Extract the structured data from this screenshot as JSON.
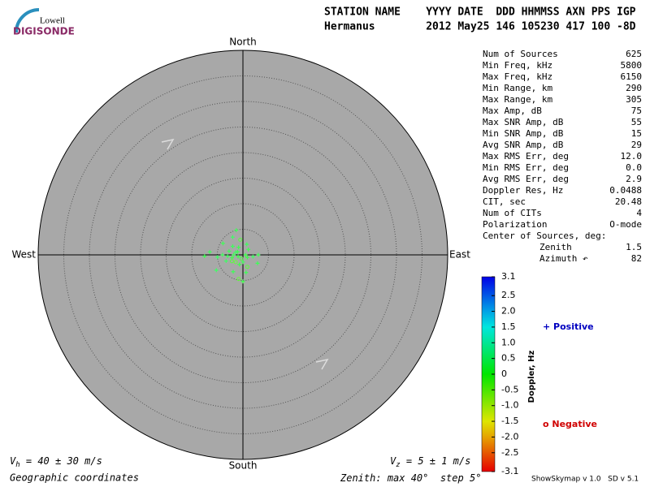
{
  "header": {
    "logo_top": "Lowell",
    "logo_bottom": "DIGISONDE",
    "line1": "STATION NAME    YYYY DATE  DDD HHMMSS AXN PPS IGP",
    "line2": "Hermanus        2012 May25 146 105230 417 100 -8D"
  },
  "stats": {
    "rows": [
      [
        "Num of Sources",
        "625"
      ],
      [
        "Min Freq, kHz",
        "5800"
      ],
      [
        "Max Freq, kHz",
        "6150"
      ],
      [
        "Min Range, km",
        "290"
      ],
      [
        "Max Range, km",
        "305"
      ],
      [
        "Max Amp, dB",
        "75"
      ],
      [
        "Max SNR Amp, dB",
        "55"
      ],
      [
        "Min SNR Amp, dB",
        "15"
      ],
      [
        "Avg SNR Amp, dB",
        "29"
      ],
      [
        "Max RMS Err, deg",
        "12.0"
      ],
      [
        "Min RMS Err, deg",
        "0.0"
      ],
      [
        "Avg RMS Err, deg",
        "2.9"
      ],
      [
        "Doppler Res, Hz",
        "0.0488"
      ],
      [
        "CIT, sec",
        "20.48"
      ],
      [
        "Num of CITs",
        "4"
      ],
      [
        "Polarization",
        "O-mode"
      ]
    ],
    "center_title": "Center of Sources, deg:",
    "center_rows": [
      [
        "Zenith",
        "1.5"
      ],
      [
        "Azimuth ↶",
        "82"
      ]
    ]
  },
  "skymap": {
    "north": "North",
    "south": "South",
    "east": "East",
    "west": "West",
    "points": {
      "zenith": [
        1.8,
        2.2,
        1.5,
        2.5,
        1.2,
        3.0,
        2.0,
        1.0,
        2.8,
        3.5,
        0.8,
        1.4,
        2.0,
        4.0,
        5.0,
        6.5,
        7.5,
        2.5,
        3.5,
        1.0,
        2.0,
        3.0,
        1.5,
        2.2,
        3.0,
        4.0,
        5.0,
        4.8,
        5.2,
        3.8,
        2.6,
        1.7,
        0.5,
        3.3,
        6.0,
        4.5
      ],
      "azimuth": [
        270,
        255,
        290,
        240,
        300,
        265,
        225,
        250,
        285,
        250,
        200,
        180,
        200,
        270,
        265,
        275,
        268,
        160,
        170,
        120,
        100,
        90,
        45,
        20,
        350,
        330,
        345,
        190,
        180,
        210,
        310,
        330,
        90,
        120,
        240,
        300
      ],
      "doppler": [
        0.2,
        0.1,
        0.3,
        -0.2,
        0.15,
        0.25,
        -0.3,
        0.1,
        0.2,
        0.3,
        -0.1,
        0.2,
        0.1,
        0.25,
        0.3,
        0.2,
        0.15,
        -0.25,
        0.2,
        0.1,
        0.3,
        0.2,
        0.15,
        0.25,
        -0.2,
        0.3,
        0.2,
        -0.3,
        0.1,
        0.2,
        0.25,
        0.15,
        0.1,
        0.2,
        0.3,
        0.2
      ]
    }
  },
  "colorbar": {
    "label": "Doppler, Hz",
    "ticks": [
      3.1,
      2.5,
      {
        "value": 2.0,
        "label": "2.0"
      },
      1.5,
      {
        "value": 1.0,
        "label": "1.0"
      },
      0.5,
      0,
      -0.5,
      {
        "value": -1.0,
        "label": "-1.0"
      },
      -1.5,
      {
        "value": -2.0,
        "label": "-2.0"
      },
      -2.5,
      -3.1
    ],
    "positive": "+ Positive",
    "negative": "o Negative"
  },
  "footer": {
    "vh": [
      "V",
      "h",
      " = 40 ± 30 m/s"
    ],
    "vz": [
      "V",
      "z",
      " = 5 ± 1 m/s"
    ],
    "coords": "Geographic coordinates",
    "zenith": [
      "Zenith: max ",
      40,
      "°  step ",
      5,
      "°"
    ],
    "version": "ShowSkymap v 1.0   SD v 5.1"
  }
}
